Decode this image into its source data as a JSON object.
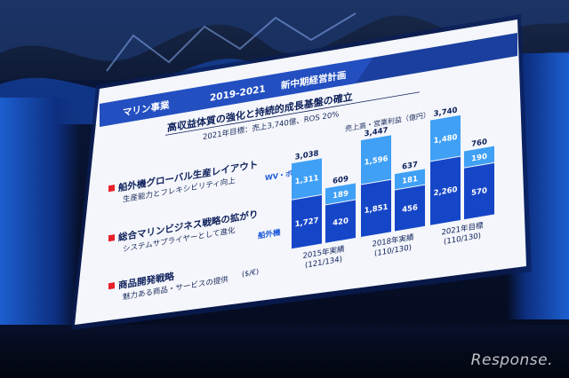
{
  "header": {
    "segment": "マリン事業",
    "period": "2019-2021",
    "plan": "新中期経営計画"
  },
  "title": "高収益体質の強化と持続的成長基盤の確立",
  "target_note": "2021年目標：売上3,740億、ROS 20%",
  "chart_unit_label": "売上高・営業利益（億円）",
  "currency_note": "($/€)",
  "bullets": [
    {
      "heading": "船外機グローバル生産レイアウト",
      "sub": "生産能力とフレキシビリティ向上"
    },
    {
      "heading": "総合マリンビジネス戦略の拡がり",
      "sub": "システムサプライヤーとして進化"
    },
    {
      "heading": "商品開発戦略",
      "sub": "魅力ある商品・サービスの提供"
    }
  ],
  "series_labels": {
    "outboard": "船外機",
    "other": "WV・ボート等"
  },
  "colors": {
    "accent": "#1a56d6",
    "bar_light": "#3fa0f5",
    "bar_dark": "#1646c8",
    "header_band": "#1b3f9e",
    "bullet_marker": "#e8202a"
  },
  "chart_data": {
    "type": "bar",
    "stacked": true,
    "categories": [
      {
        "label": "2015年実績",
        "rate": "(121/134)"
      },
      {
        "label": "2018年実績",
        "rate": "(110/130)"
      },
      {
        "label": "2021年目標",
        "rate": "(110/130)"
      }
    ],
    "groups": [
      {
        "category": "2015年実績",
        "revenue": {
          "total": "3,038",
          "outboard": "1,727",
          "other": "1,311",
          "outboard_v": 1727,
          "other_v": 1311
        },
        "profit": {
          "total": "609",
          "outboard": "420",
          "other": "189",
          "outboard_v": 420,
          "other_v": 189
        }
      },
      {
        "category": "2018年実績",
        "revenue": {
          "total": "3,447",
          "outboard": "1,851",
          "other": "1,596",
          "outboard_v": 1851,
          "other_v": 1596
        },
        "profit": {
          "total": "637",
          "outboard": "456",
          "other": "181",
          "outboard_v": 456,
          "other_v": 181
        }
      },
      {
        "category": "2021年目標",
        "revenue": {
          "total": "3,740",
          "outboard": "2,260",
          "other": "1,480",
          "outboard_v": 2260,
          "other_v": 1480
        },
        "profit": {
          "total": "760",
          "outboard": "570",
          "other": "190",
          "outboard_v": 570,
          "other_v": 190
        }
      }
    ],
    "title": "",
    "xlabel": "",
    "ylabel": "売上高・営業利益（億円）"
  },
  "watermark": "Response."
}
